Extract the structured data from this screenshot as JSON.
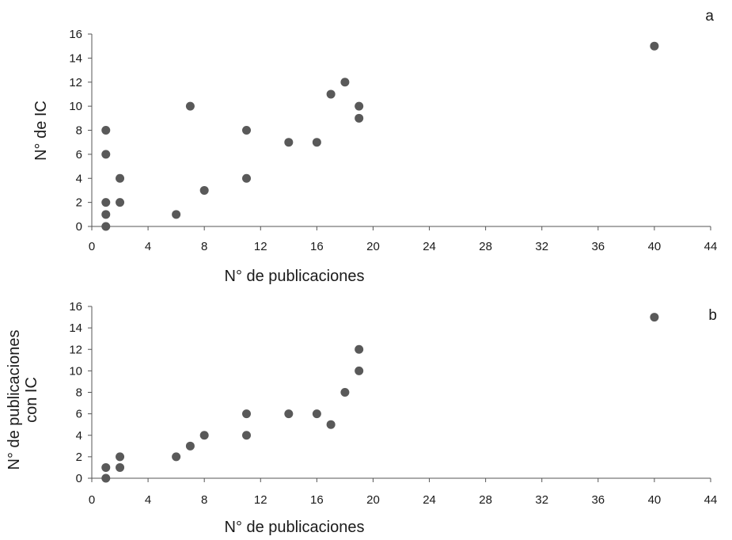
{
  "chart_data": [
    {
      "type": "scatter",
      "panel_label": "a",
      "xlabel": "N° de publicaciones",
      "ylabel": "N° de  IC",
      "xlim": [
        0,
        44
      ],
      "ylim": [
        0,
        16
      ],
      "x_ticks": [
        "0",
        "4",
        "8",
        "12",
        "16",
        "20",
        "24",
        "28",
        "32",
        "36",
        "40",
        "44"
      ],
      "y_ticks": [
        "0",
        "2",
        "4",
        "6",
        "8",
        "10",
        "12",
        "14",
        "16"
      ],
      "grid": false,
      "marker_color": "#595959",
      "points": [
        {
          "x": 1,
          "y": 0
        },
        {
          "x": 1,
          "y": 1
        },
        {
          "x": 1,
          "y": 2
        },
        {
          "x": 1,
          "y": 6
        },
        {
          "x": 1,
          "y": 8
        },
        {
          "x": 2,
          "y": 2
        },
        {
          "x": 2,
          "y": 4
        },
        {
          "x": 6,
          "y": 1
        },
        {
          "x": 7,
          "y": 10
        },
        {
          "x": 8,
          "y": 3
        },
        {
          "x": 11,
          "y": 4
        },
        {
          "x": 11,
          "y": 8
        },
        {
          "x": 14,
          "y": 7
        },
        {
          "x": 16,
          "y": 7
        },
        {
          "x": 17,
          "y": 11
        },
        {
          "x": 18,
          "y": 12
        },
        {
          "x": 19,
          "y": 10
        },
        {
          "x": 19,
          "y": 9
        },
        {
          "x": 40,
          "y": 15
        }
      ]
    },
    {
      "type": "scatter",
      "panel_label": "b",
      "xlabel": "N° de publicaciones",
      "ylabel": [
        "N° de publicaciones",
        "con IC"
      ],
      "xlim": [
        0,
        44
      ],
      "ylim": [
        0,
        16
      ],
      "x_ticks": [
        "0",
        "4",
        "8",
        "12",
        "16",
        "20",
        "24",
        "28",
        "32",
        "36",
        "40",
        "44"
      ],
      "y_ticks": [
        "0",
        "2",
        "4",
        "6",
        "8",
        "10",
        "12",
        "14",
        "16"
      ],
      "grid": false,
      "marker_color": "#595959",
      "points": [
        {
          "x": 1,
          "y": 0
        },
        {
          "x": 1,
          "y": 1
        },
        {
          "x": 2,
          "y": 1
        },
        {
          "x": 2,
          "y": 2
        },
        {
          "x": 6,
          "y": 2
        },
        {
          "x": 7,
          "y": 3
        },
        {
          "x": 8,
          "y": 4
        },
        {
          "x": 11,
          "y": 4
        },
        {
          "x": 11,
          "y": 6
        },
        {
          "x": 14,
          "y": 6
        },
        {
          "x": 16,
          "y": 6
        },
        {
          "x": 17,
          "y": 5
        },
        {
          "x": 18,
          "y": 8
        },
        {
          "x": 19,
          "y": 10
        },
        {
          "x": 19,
          "y": 12
        },
        {
          "x": 40,
          "y": 15
        }
      ]
    }
  ]
}
